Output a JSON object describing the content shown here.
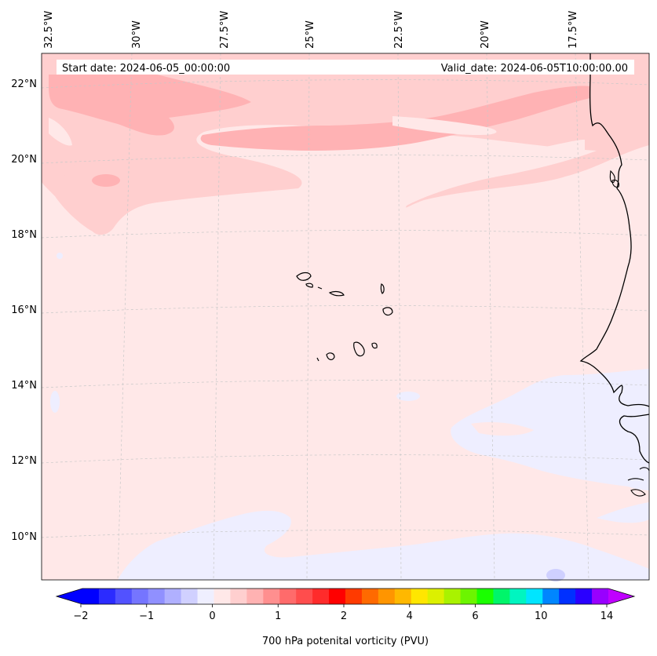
{
  "header": {
    "start_date": "Start date: 2024-06-05_00:00:00",
    "valid_date": "Valid_date: 2024-06-05T10:00:00.00"
  },
  "map": {
    "lon_labels": [
      "32.5°W",
      "30°W",
      "27.5°W",
      "25°W",
      "22.5°W",
      "20°W",
      "17.5°W"
    ],
    "lat_labels": [
      "22°N",
      "20°N",
      "18°N",
      "16°N",
      "14°N",
      "12°N",
      "10°N"
    ],
    "colors": {
      "background": "#ffe8e8",
      "light_pink": "#ffcfcf",
      "band": "#ffb2b4",
      "pale_blue": "#eeeeff",
      "coast": "#000000",
      "grid": "#c8c8c8"
    }
  },
  "colorbar": {
    "label": "700 hPa potenital vorticity (PVU)",
    "ticks": [
      "−2",
      "−1",
      "0",
      "1",
      "2",
      "4",
      "6",
      "10",
      "14"
    ],
    "colors": [
      "#0000ff",
      "#2b2bff",
      "#5252ff",
      "#7575ff",
      "#9090ff",
      "#b0b0ff",
      "#d0d0ff",
      "#efefff",
      "#ffe8e8",
      "#ffcfcf",
      "#ffb2b2",
      "#ff8f8f",
      "#ff6b6b",
      "#ff4d4d",
      "#ff2b2b",
      "#ff0000",
      "#ff3a00",
      "#ff6a00",
      "#ff9500",
      "#ffb800",
      "#ffe600",
      "#dcf000",
      "#a9f200",
      "#6cf500",
      "#1aff00",
      "#00f56a",
      "#00f5c0",
      "#00e5ff",
      "#0086ff",
      "#0030ff",
      "#2a00ff",
      "#9800ff"
    ],
    "arrow_left_color": "#0000ff",
    "arrow_right_color": "#c000ff"
  }
}
